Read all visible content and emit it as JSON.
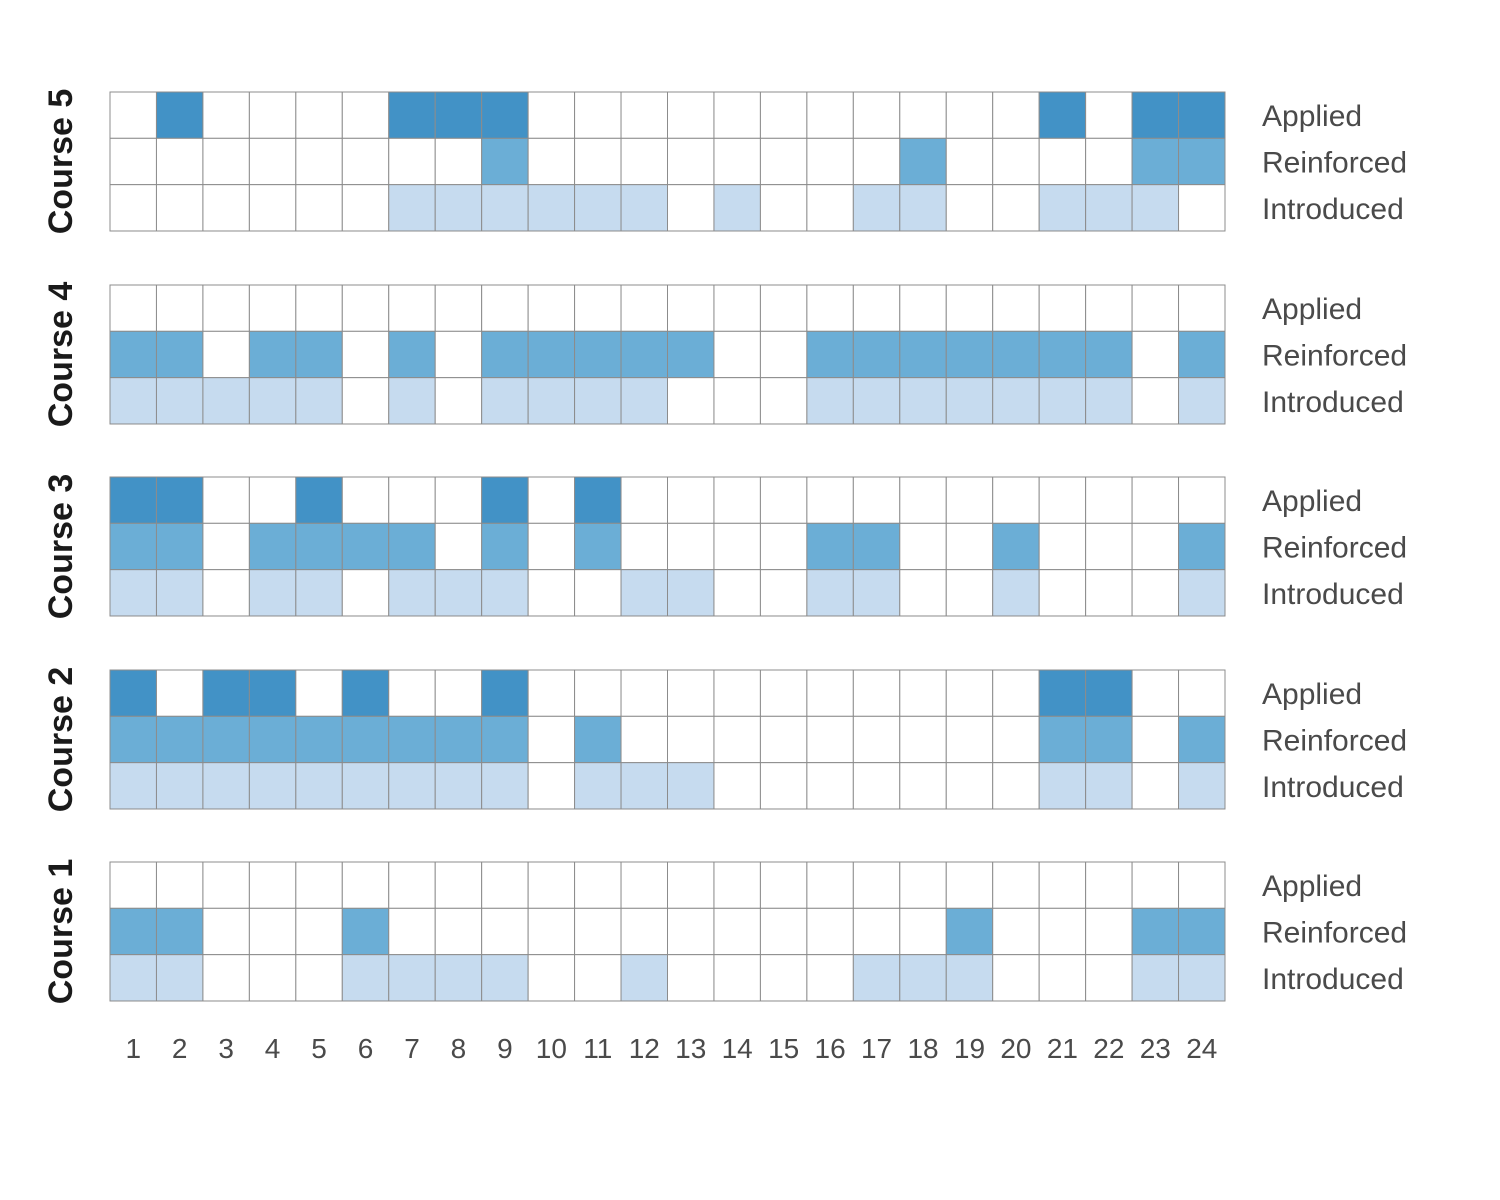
{
  "chart_data": {
    "type": "heatmap",
    "title": "",
    "xlabel": "",
    "ylabel": "",
    "columns": [
      "1",
      "2",
      "3",
      "4",
      "5",
      "6",
      "7",
      "8",
      "9",
      "10",
      "11",
      "12",
      "13",
      "14",
      "15",
      "16",
      "17",
      "18",
      "19",
      "20",
      "21",
      "22",
      "23",
      "24"
    ],
    "levels": [
      "Applied",
      "Reinforced",
      "Introduced"
    ],
    "level_colors": {
      "Applied": "#4292c6",
      "Reinforced": "#6baed6",
      "Introduced": "#c6dbef",
      "none": "#ffffff"
    },
    "grid_color": "#8c8c8c",
    "courses": [
      {
        "name": "Course 5",
        "Applied": [
          0,
          1,
          0,
          0,
          0,
          0,
          1,
          1,
          1,
          0,
          0,
          0,
          0,
          0,
          0,
          0,
          0,
          0,
          0,
          0,
          1,
          0,
          1,
          1
        ],
        "Reinforced": [
          0,
          0,
          0,
          0,
          0,
          0,
          0,
          0,
          1,
          0,
          0,
          0,
          0,
          0,
          0,
          0,
          0,
          1,
          0,
          0,
          0,
          0,
          1,
          1
        ],
        "Introduced": [
          0,
          0,
          0,
          0,
          0,
          0,
          1,
          1,
          1,
          1,
          1,
          1,
          0,
          1,
          0,
          0,
          1,
          1,
          0,
          0,
          1,
          1,
          1,
          0
        ]
      },
      {
        "name": "Course 4",
        "Applied": [
          0,
          0,
          0,
          0,
          0,
          0,
          0,
          0,
          0,
          0,
          0,
          0,
          0,
          0,
          0,
          0,
          0,
          0,
          0,
          0,
          0,
          0,
          0,
          0
        ],
        "Reinforced": [
          1,
          1,
          0,
          1,
          1,
          0,
          1,
          0,
          1,
          1,
          1,
          1,
          1,
          0,
          0,
          1,
          1,
          1,
          1,
          1,
          1,
          1,
          0,
          1
        ],
        "Introduced": [
          1,
          1,
          1,
          1,
          1,
          0,
          1,
          0,
          1,
          1,
          1,
          1,
          0,
          0,
          0,
          1,
          1,
          1,
          1,
          1,
          1,
          1,
          0,
          1
        ]
      },
      {
        "name": "Course 3",
        "Applied": [
          1,
          1,
          0,
          0,
          1,
          0,
          0,
          0,
          1,
          0,
          1,
          0,
          0,
          0,
          0,
          0,
          0,
          0,
          0,
          0,
          0,
          0,
          0,
          0
        ],
        "Reinforced": [
          1,
          1,
          0,
          1,
          1,
          1,
          1,
          0,
          1,
          0,
          1,
          0,
          0,
          0,
          0,
          1,
          1,
          0,
          0,
          1,
          0,
          0,
          0,
          1
        ],
        "Introduced": [
          1,
          1,
          0,
          1,
          1,
          0,
          1,
          1,
          1,
          0,
          0,
          1,
          1,
          0,
          0,
          1,
          1,
          0,
          0,
          1,
          0,
          0,
          0,
          1
        ]
      },
      {
        "name": "Course 2",
        "Applied": [
          1,
          0,
          1,
          1,
          0,
          1,
          0,
          0,
          1,
          0,
          0,
          0,
          0,
          0,
          0,
          0,
          0,
          0,
          0,
          0,
          1,
          1,
          0,
          0
        ],
        "Reinforced": [
          1,
          1,
          1,
          1,
          1,
          1,
          1,
          1,
          1,
          0,
          1,
          0,
          0,
          0,
          0,
          0,
          0,
          0,
          0,
          0,
          1,
          1,
          0,
          1
        ],
        "Introduced": [
          1,
          1,
          1,
          1,
          1,
          1,
          1,
          1,
          1,
          0,
          1,
          1,
          1,
          0,
          0,
          0,
          0,
          0,
          0,
          0,
          1,
          1,
          0,
          1
        ]
      },
      {
        "name": "Course 1",
        "Applied": [
          0,
          0,
          0,
          0,
          0,
          0,
          0,
          0,
          0,
          0,
          0,
          0,
          0,
          0,
          0,
          0,
          0,
          0,
          0,
          0,
          0,
          0,
          0,
          0
        ],
        "Reinforced": [
          1,
          1,
          0,
          0,
          0,
          1,
          0,
          0,
          0,
          0,
          0,
          0,
          0,
          0,
          0,
          0,
          0,
          0,
          1,
          0,
          0,
          0,
          1,
          1
        ],
        "Introduced": [
          1,
          1,
          0,
          0,
          0,
          1,
          1,
          1,
          1,
          0,
          0,
          1,
          0,
          0,
          0,
          0,
          1,
          1,
          1,
          0,
          0,
          0,
          1,
          1
        ]
      }
    ]
  }
}
